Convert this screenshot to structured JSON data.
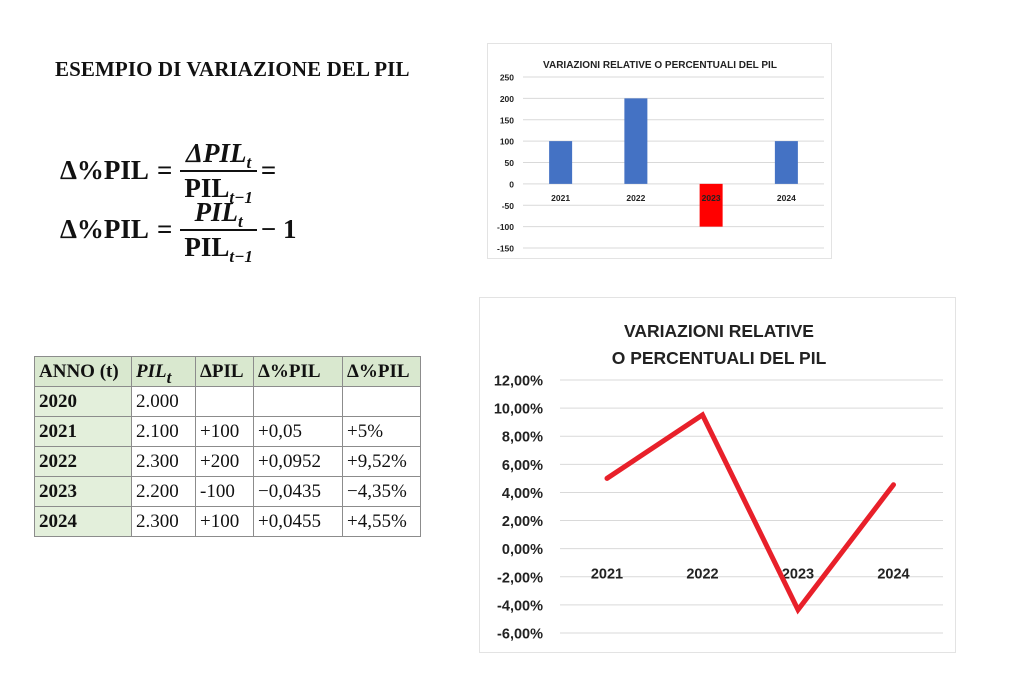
{
  "page": {
    "title": "ESEMPIO DI VARIAZIONE DEL PIL"
  },
  "formula": {
    "line1": {
      "lhs": "Δ%PIL",
      "eq": "=",
      "numerator": "ΔPIL",
      "numerator_sub": "t",
      "denominator": "PIL",
      "denominator_sub": "t−1",
      "tail": "="
    },
    "line2": {
      "lhs": "Δ%PIL",
      "eq": "=",
      "numerator": "PIL",
      "numerator_sub": "t",
      "denominator": "PIL",
      "denominator_sub": "t−1",
      "tail": "− 1"
    }
  },
  "table": {
    "headers": [
      "ANNO (t)",
      "PIL",
      "ΔPIL",
      "Δ%PIL",
      "Δ%PIL"
    ],
    "header_pil_sub": "t",
    "rows": [
      {
        "anno": "2020",
        "pil": "2.000",
        "delta": "",
        "var": "",
        "pct": ""
      },
      {
        "anno": "2021",
        "pil": "2.100",
        "delta": "+100",
        "var": "+0,05",
        "pct": "+5%"
      },
      {
        "anno": "2022",
        "pil": "2.300",
        "delta": "+200",
        "var": "+0,0952",
        "pct": "+9,52%"
      },
      {
        "anno": "2023",
        "pil": "2.200",
        "delta": "-100",
        "var": "−0,0435",
        "pct": "−4,35%"
      },
      {
        "anno": "2024",
        "pil": "2.300",
        "delta": "+100",
        "var": "+0,0455",
        "pct": "+4,55%"
      }
    ],
    "colors": {
      "header_bg": "#d9e8cf",
      "year_bg": "#e3efdb",
      "border": "#8c8c8c"
    }
  },
  "chart_data": [
    {
      "type": "bar",
      "title": "VARIAZIONI RELATIVE O PERCENTUALI DEL PIL",
      "categories": [
        "2021",
        "2022",
        "2023",
        "2024"
      ],
      "values": [
        100,
        200,
        -100,
        100
      ],
      "colors": [
        "#4472c4",
        "#4472c4",
        "#ff0000",
        "#4472c4"
      ],
      "xlabel": "",
      "ylabel": "",
      "ylim": [
        -150,
        250
      ],
      "yticks": [
        "250",
        "200",
        "150",
        "100",
        "50",
        "0",
        "-50",
        "-100",
        "-150"
      ],
      "grid": true,
      "legend": "none"
    },
    {
      "type": "line",
      "title": "VARIAZIONI RELATIVE O PERCENTUALI DEL PIL",
      "title_lines": [
        "VARIAZIONI RELATIVE",
        "O PERCENTUALI DEL PIL"
      ],
      "categories": [
        "2021",
        "2022",
        "2023",
        "2024"
      ],
      "values": [
        5.0,
        9.52,
        -4.35,
        4.55
      ],
      "value_unit": "%",
      "color": "#e8202a",
      "xlabel": "",
      "ylabel": "",
      "ylim": [
        -6,
        12
      ],
      "yticks": [
        "12,00%",
        "10,00%",
        "8,00%",
        "6,00%",
        "4,00%",
        "2,00%",
        "0,00%",
        "-2,00%",
        "-4,00%",
        "-6,00%"
      ],
      "grid": true,
      "legend": "none"
    }
  ]
}
